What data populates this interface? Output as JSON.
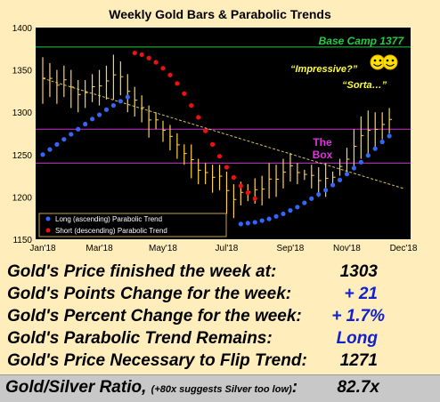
{
  "chart_data": {
    "type": "line",
    "title": "Weekly Gold Bars & Parabolic Trends",
    "ylim": [
      1150,
      1400
    ],
    "yticks": [
      1150,
      1200,
      1250,
      1300,
      1350,
      1400
    ],
    "xtick_labels": [
      "Jan'18",
      "Mar'18",
      "May'18",
      "Jul'18",
      "Sep'18",
      "Nov'18",
      "Dec'18"
    ],
    "colors": {
      "plot_bg": "#000000",
      "bars": "#FFD24A",
      "long": "#3366FF",
      "short": "#EE1111",
      "base_camp": "#22CC44",
      "box": "#CC33CC",
      "trendline": "#D9C060"
    },
    "base_camp": {
      "value": 1377,
      "label": "Base Camp 1377"
    },
    "box": {
      "low": 1240,
      "high": 1280,
      "label_1": "The",
      "label_2": "Box"
    },
    "trendline": {
      "from": [
        0,
        1340
      ],
      "to": [
        51,
        1210
      ]
    },
    "annotations": {
      "impressive": "“Impressive?”",
      "sorta": "“Sorta…”"
    },
    "legend": {
      "long": "Long (ascending) Parabolic Trend",
      "short": "Short (descending) Parabolic Trend"
    },
    "bars": [
      [
        1310,
        1365
      ],
      [
        1318,
        1358
      ],
      [
        1310,
        1350
      ],
      [
        1318,
        1355
      ],
      [
        1305,
        1350
      ],
      [
        1300,
        1338
      ],
      [
        1305,
        1338
      ],
      [
        1312,
        1345
      ],
      [
        1308,
        1350
      ],
      [
        1315,
        1355
      ],
      [
        1315,
        1368
      ],
      [
        1320,
        1360
      ],
      [
        1300,
        1345
      ],
      [
        1295,
        1330
      ],
      [
        1288,
        1320
      ],
      [
        1270,
        1308
      ],
      [
        1280,
        1300
      ],
      [
        1265,
        1290
      ],
      [
        1255,
        1285
      ],
      [
        1245,
        1275
      ],
      [
        1238,
        1262
      ],
      [
        1222,
        1262
      ],
      [
        1215,
        1245
      ],
      [
        1215,
        1240
      ],
      [
        1205,
        1238
      ],
      [
        1208,
        1238
      ],
      [
        1180,
        1230
      ],
      [
        1175,
        1215
      ],
      [
        1190,
        1218
      ],
      [
        1195,
        1215
      ],
      [
        1192,
        1222
      ],
      [
        1190,
        1225
      ],
      [
        1198,
        1240
      ],
      [
        1200,
        1238
      ],
      [
        1210,
        1245
      ],
      [
        1218,
        1252
      ],
      [
        1215,
        1240
      ],
      [
        1220,
        1232
      ],
      [
        1210,
        1238
      ],
      [
        1200,
        1235
      ],
      [
        1200,
        1240
      ],
      [
        1215,
        1230
      ],
      [
        1225,
        1245
      ],
      [
        1228,
        1258
      ],
      [
        1235,
        1280
      ],
      [
        1245,
        1295
      ],
      [
        1250,
        1302
      ],
      [
        1255,
        1300
      ],
      [
        1268,
        1300
      ],
      [
        1275,
        1305
      ]
    ],
    "long_trend": [
      [
        0,
        1250
      ],
      [
        1,
        1256
      ],
      [
        2,
        1262
      ],
      [
        3,
        1268
      ],
      [
        4,
        1274
      ],
      [
        5,
        1280
      ],
      [
        6,
        1286
      ],
      [
        7,
        1292
      ],
      [
        8,
        1297
      ],
      [
        9,
        1303
      ],
      [
        10,
        1308
      ],
      [
        11,
        1313
      ],
      [
        12,
        1318
      ],
      [
        28,
        1168
      ],
      [
        29,
        1169
      ],
      [
        30,
        1170
      ],
      [
        31,
        1172
      ],
      [
        32,
        1174
      ],
      [
        33,
        1177
      ],
      [
        34,
        1180
      ],
      [
        35,
        1184
      ],
      [
        36,
        1188
      ],
      [
        37,
        1193
      ],
      [
        38,
        1198
      ],
      [
        39,
        1203
      ],
      [
        40,
        1208
      ],
      [
        41,
        1214
      ],
      [
        42,
        1220
      ],
      [
        43,
        1227
      ],
      [
        44,
        1234
      ],
      [
        45,
        1241
      ],
      [
        46,
        1249
      ],
      [
        47,
        1257
      ],
      [
        48,
        1265
      ],
      [
        49,
        1272
      ]
    ],
    "short_trend": [
      [
        13,
        1370
      ],
      [
        14,
        1368
      ],
      [
        15,
        1364
      ],
      [
        16,
        1359
      ],
      [
        17,
        1352
      ],
      [
        18,
        1344
      ],
      [
        19,
        1334
      ],
      [
        20,
        1322
      ],
      [
        21,
        1308
      ],
      [
        22,
        1294
      ],
      [
        23,
        1278
      ],
      [
        24,
        1262
      ],
      [
        25,
        1248
      ],
      [
        26,
        1235
      ],
      [
        27,
        1223
      ],
      [
        28,
        1213
      ],
      [
        29,
        1205
      ],
      [
        30,
        1198
      ]
    ]
  },
  "stats": [
    {
      "label": "Gold's Price finished the week at:",
      "value": "1303",
      "color": "#000000"
    },
    {
      "label": "Gold's Points Change for the week:",
      "value": "+ 21",
      "color": "#1122CC"
    },
    {
      "label": "Gold's Percent Change for the week:",
      "value": "+ 1.7%",
      "color": "#1122CC"
    },
    {
      "label": "Gold's Parabolic Trend Remains:",
      "value": "Long",
      "color": "#1122CC"
    },
    {
      "label": "Gold's Price Necessary to Flip Trend:",
      "value": "1271",
      "color": "#000000"
    }
  ],
  "ratio": {
    "label": "Gold/Silver Ratio,",
    "note": "(+80x suggests Silver too low)",
    "suffix": ":",
    "value": "82.7x"
  }
}
